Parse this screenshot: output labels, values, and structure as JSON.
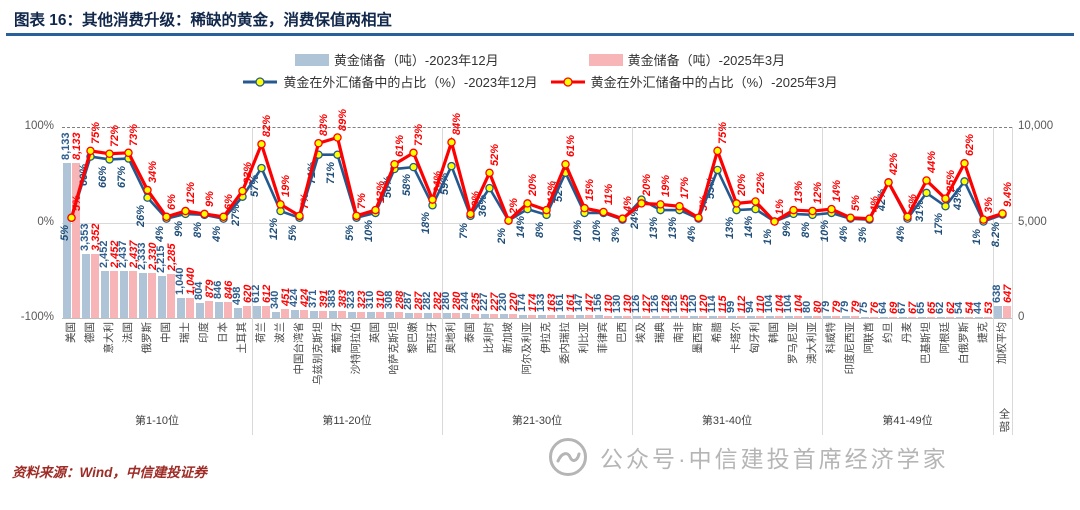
{
  "header": {
    "title": "图表 16：其他消费升级：稀缺的黄金，消费保值两相宜"
  },
  "legend": {
    "bar_2023": "黄金储备（吨）-2023年12月",
    "bar_2025": "黄金储备（吨）-2025年3月",
    "line_2023": "黄金在外汇储备中的占比（%）-2023年12月",
    "line_2025": "黄金在外汇储备中的占比（%）-2025年3月"
  },
  "colors": {
    "bar_2023": "#b0c4d8",
    "bar_2025": "#f8b5b8",
    "line_2023": "#24598f",
    "line_2025": "#ff0000",
    "marker_fill": "#ffff00",
    "title_rule": "#2a6099",
    "source_text": "#9e2b25",
    "watermark": "#b5b5b5"
  },
  "chart_data": {
    "type": "bar",
    "subtype": "bar+line combo, dual axis",
    "categories": [
      "美国",
      "德国",
      "意大利",
      "法国",
      "俄罗斯",
      "中国",
      "瑞士",
      "印度",
      "日本",
      "土耳其",
      "荷兰",
      "波兰",
      "中国台湾省",
      "乌兹别克斯坦",
      "葡萄牙",
      "沙特阿拉伯",
      "英国",
      "哈萨克斯坦",
      "黎巴嫩",
      "西班牙",
      "奥地利",
      "泰国",
      "比利时",
      "新加坡",
      "阿尔及利亚",
      "伊拉克",
      "委内瑞拉",
      "利比亚",
      "菲律宾",
      "巴西",
      "埃及",
      "瑞典",
      "南非",
      "墨西哥",
      "希腊",
      "卡塔尔",
      "匈牙利",
      "韩国",
      "罗马尼亚",
      "澳大利亚",
      "科威特",
      "印度尼西亚",
      "阿联酋",
      "约旦",
      "丹麦",
      "巴基斯坦",
      "阿根廷",
      "白俄罗斯",
      "捷克",
      "加权平均"
    ],
    "series": [
      {
        "name": "黄金储备（吨）-2023年12月",
        "type": "bar",
        "axis": "right",
        "values": [
          8133,
          3353,
          2452,
          2437,
          2333,
          2215,
          1040,
          804,
          846,
          498,
          612,
          340,
          424,
          371,
          383,
          323,
          310,
          308,
          287,
          282,
          280,
          244,
          227,
          230,
          174,
          133,
          161,
          147,
          156,
          130,
          126,
          126,
          125,
          120,
          114,
          99,
          94,
          104,
          104,
          80,
          79,
          79,
          75,
          64,
          67,
          65,
          62,
          54,
          44,
          638
        ]
      },
      {
        "name": "黄金储备（吨）-2025年3月",
        "type": "bar",
        "axis": "right",
        "values": [
          8133,
          3352,
          2452,
          2437,
          2330,
          2285,
          1040,
          879,
          846,
          620,
          612,
          451,
          424,
          391,
          383,
          323,
          310,
          288,
          287,
          282,
          280,
          235,
          227,
          220,
          174,
          163,
          161,
          147,
          130,
          130,
          127,
          126,
          125,
          120,
          115,
          112,
          110,
          104,
          104,
          80,
          79,
          79,
          76,
          69,
          67,
          65,
          62,
          54,
          53,
          647
        ]
      },
      {
        "name": "黄金在外汇储备中的占比（%）-2023年12月",
        "type": "line",
        "axis": "left",
        "values": [
          5,
          69,
          66,
          67,
          26,
          4,
          9,
          8,
          4,
          27,
          57,
          12,
          5,
          71,
          71,
          5,
          10,
          56,
          58,
          18,
          59,
          7,
          36,
          2,
          14,
          8,
          52,
          10,
          10,
          3,
          24,
          13,
          13,
          4,
          55,
          13,
          14,
          1,
          9,
          8,
          10,
          4,
          3,
          42,
          4,
          31,
          17,
          43,
          1,
          8.2
        ]
      },
      {
        "name": "黄金在外汇储备中的占比（%）-2025年3月",
        "type": "line",
        "axis": "left",
        "values": [
          5,
          75,
          72,
          73,
          34,
          6,
          12,
          9,
          6,
          33,
          82,
          19,
          7,
          83,
          89,
          7,
          13,
          61,
          73,
          24,
          84,
          9,
          52,
          2,
          20,
          13,
          61,
          15,
          11,
          4,
          20,
          19,
          17,
          5,
          75,
          20,
          22,
          1,
          13,
          12,
          14,
          5,
          4,
          42,
          6,
          44,
          25,
          62,
          3,
          9.4
        ]
      }
    ],
    "groups": [
      {
        "label": "第1-10位",
        "count": 10
      },
      {
        "label": "第11-20位",
        "count": 10
      },
      {
        "label": "第21-30位",
        "count": 10
      },
      {
        "label": "第31-40位",
        "count": 10
      },
      {
        "label": "第41-49位",
        "count": 9
      },
      {
        "label": "全部",
        "count": 1
      }
    ],
    "left_axis": {
      "ticks": [
        "100%",
        "0%",
        "-100%"
      ],
      "max": 100,
      "min": -100
    },
    "right_axis": {
      "ticks": [
        "10,000",
        "5,000",
        "0"
      ],
      "max": 10000,
      "min": 0
    },
    "grid": "horizontal gridlines at 100%/10,000 (dashed), 0%/5,000, -100%/0; vertical group separators",
    "legend_position": "top"
  },
  "footer": {
    "source": "资料来源：Wind，中信建投证券",
    "watermark": "公众号·中信建投首席经济学家"
  }
}
